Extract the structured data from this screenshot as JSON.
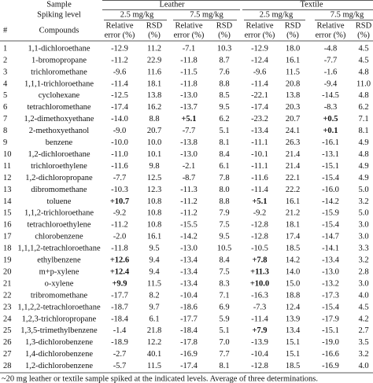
{
  "header": {
    "sample": "Sample",
    "spiking_level": "Spiking level",
    "number": "#",
    "compounds": "Compounds",
    "groups": [
      {
        "name": "Leather",
        "levels": [
          "2.5 mg/kg",
          "7.5 mg/kg"
        ]
      },
      {
        "name": "Textile",
        "levels": [
          "2.5 mg/kg",
          "7.5 mg/kg"
        ]
      }
    ],
    "metrics": [
      [
        "Relative",
        "error (%)"
      ],
      [
        "RSD",
        "(%)"
      ]
    ]
  },
  "table": {
    "rows": [
      [
        "1",
        "1,1-dichloroethane",
        "-12.9",
        "11.2",
        "-7.1",
        "10.3",
        "-12.9",
        "18.0",
        "-4.8",
        "4.5"
      ],
      [
        "2",
        "1-bromopropane",
        "-11.2",
        "22.9",
        "-11.8",
        "8.7",
        "-12.4",
        "16.1",
        "-7.7",
        "4.5"
      ],
      [
        "3",
        "trichloromethane",
        "-9.6",
        "11.6",
        "-11.5",
        "7.6",
        "-9.6",
        "11.5",
        "-1.6",
        "4.8"
      ],
      [
        "4",
        "1,1,1-trichloroethane",
        "-11.4",
        "18.1",
        "-11.8",
        "8.8",
        "-11.4",
        "20.8",
        "-9.4",
        "11.0"
      ],
      [
        "5",
        "cyclohexane",
        "-12.5",
        "13.8",
        "-13.0",
        "8.5",
        "-22.1",
        "13.8",
        "-14.5",
        "4.8"
      ],
      [
        "6",
        "tetrachloromethane",
        "-17.4",
        "16.2",
        "-13.7",
        "9.5",
        "-17.4",
        "20.3",
        "-8.3",
        "6.2"
      ],
      [
        "7",
        "1,2-dimethoxyethane",
        "-14.0",
        "8.8",
        "+5.1",
        "6.2",
        "-23.2",
        "20.7",
        "+0.5",
        "7.1"
      ],
      [
        "8",
        "2-methoxyethanol",
        "-9.0",
        "20.7",
        "-7.7",
        "5.1",
        "-13.4",
        "24.1",
        "+0.1",
        "8.1"
      ],
      [
        "9",
        "benzene",
        "-10.0",
        "10.0",
        "-13.8",
        "8.1",
        "-11.1",
        "26.3",
        "-16.1",
        "4.9"
      ],
      [
        "10",
        "1,2-dichloroethane",
        "-11.0",
        "10.1",
        "-13.0",
        "8.4",
        "-10.1",
        "21.4",
        "-13.1",
        "4.8"
      ],
      [
        "11",
        "trichloroethylene",
        "-11.6",
        "9.8",
        "-2.1",
        "6.1",
        "-11.1",
        "21.4",
        "-15.1",
        "4.9"
      ],
      [
        "12",
        "1,2-dichloropropane",
        "-7.7",
        "12.5",
        "-8.7",
        "7.8",
        "-11.6",
        "22.1",
        "-15.4",
        "4.9"
      ],
      [
        "13",
        "dibromomethane",
        "-10.3",
        "12.3",
        "-11.3",
        "8.0",
        "-11.4",
        "22.2",
        "-16.0",
        "5.0"
      ],
      [
        "14",
        "toluene",
        "+10.7",
        "10.8",
        "-11.2",
        "8.8",
        "+5.1",
        "16.1",
        "-14.2",
        "3.2"
      ],
      [
        "15",
        "1,1,2-trichloroethane",
        "-9.2",
        "10.8",
        "-11.2",
        "7.9",
        "-9.2",
        "21.2",
        "-15.9",
        "5.0"
      ],
      [
        "16",
        "tetrachloroethylene",
        "-11.2",
        "10.8",
        "-15.5",
        "7.5",
        "-12.8",
        "18.1",
        "-15.4",
        "3.0"
      ],
      [
        "17",
        "chlorobenzene",
        "-2.0",
        "16.1",
        "-14.2",
        "9.5",
        "-12.8",
        "17.4",
        "-14.7",
        "3.0"
      ],
      [
        "18",
        "1,1,1,2-tetrachloroethane",
        "-11.8",
        "9.5",
        "-13.0",
        "10.5",
        "-10.5",
        "18.5",
        "-14.1",
        "3.3"
      ],
      [
        "19",
        "ethylbenzene",
        "+12.6",
        "9.4",
        "-13.4",
        "8.4",
        "+7.8",
        "14.2",
        "-13.4",
        "3.2"
      ],
      [
        "20",
        "m+p-xylene",
        "+12.4",
        "9.4",
        "-13.4",
        "7.5",
        "+11.3",
        "14.0",
        "-13.0",
        "2.8"
      ],
      [
        "21",
        "o-xylene",
        "+9.9",
        "11.5",
        "-13.4",
        "8.3",
        "+10.0",
        "15.0",
        "-13.2",
        "3.0"
      ],
      [
        "22",
        "tribromomethane",
        "-17.7",
        "8.2",
        "-10.4",
        "7.1",
        "-16.3",
        "18.8",
        "-17.3",
        "4.0"
      ],
      [
        "23",
        "1,1,2,2-tetrachloroethane",
        "-18.7",
        "9.7",
        "-18.6",
        "6.9",
        "-7.3",
        "12.4",
        "-15.4",
        "4.5"
      ],
      [
        "24",
        "1,2,3-trichloropropane",
        "-18.4",
        "6.1",
        "-17.7",
        "5.9",
        "-11.4",
        "13.9",
        "-17.9",
        "4.2"
      ],
      [
        "25",
        "1,3,5-trimethylbenzene",
        "-1.4",
        "21.8",
        "-18.4",
        "5.1",
        "+7.9",
        "13.4",
        "-15.1",
        "2.7"
      ],
      [
        "26",
        "1,3-dichlorobenzene",
        "-18.9",
        "12.2",
        "-17.8",
        "7.0",
        "-13.9",
        "15.1",
        "-19.0",
        "3.5"
      ],
      [
        "27",
        "1,4-dichlorobenzene",
        "-2.7",
        "40.1",
        "-16.9",
        "7.7",
        "-10.4",
        "15.1",
        "-16.6",
        "3.2"
      ],
      [
        "28",
        "1,2-dichlorobenzene",
        "-5.7",
        "11.5",
        "-17.4",
        "8.1",
        "-12.8",
        "18.5",
        "-16.9",
        "4.0"
      ]
    ]
  },
  "footnote": "~20 mg leather or textile sample spiked at the indicated levels. Average of three determinations."
}
